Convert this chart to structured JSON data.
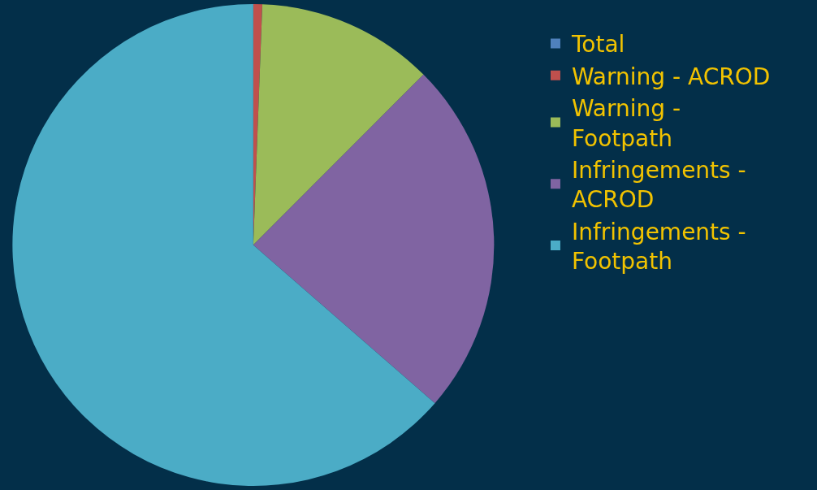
{
  "chart_data": {
    "type": "pie",
    "categories": [
      "Total",
      "Warning - ACROD",
      "Warning - Footpath",
      "Infringements - ACROD",
      "Infringements - Footpath"
    ],
    "values": [
      0,
      0.6,
      11.9,
      23.9,
      63.6
    ],
    "colors": [
      "#4f81bd",
      "#c0504d",
      "#9bbb59",
      "#8064a2",
      "#4bacc6"
    ],
    "legend": "right"
  }
}
